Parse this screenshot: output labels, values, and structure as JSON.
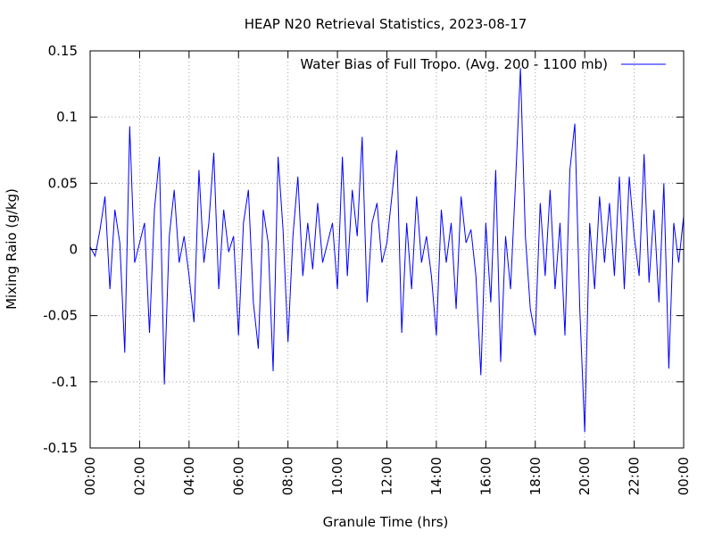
{
  "chart_data": {
    "type": "line",
    "title": "HEAP N20 Retrieval Statistics, 2023-08-17",
    "x_label": "Granule Time (hrs)",
    "y_label": "Mixing Raio (g/kg)",
    "x": [
      0,
      0.2,
      0.4,
      0.6,
      0.8,
      1,
      1.2,
      1.4,
      1.6,
      1.8,
      2,
      2.2,
      2.4,
      2.6,
      2.8,
      3,
      3.2,
      3.4,
      3.6,
      3.8,
      4,
      4.2,
      4.4,
      4.6,
      4.8,
      5,
      5.2,
      5.4,
      5.6,
      5.8,
      6,
      6.2,
      6.4,
      6.6,
      6.8,
      7,
      7.2,
      7.4,
      7.6,
      7.8,
      8,
      8.2,
      8.4,
      8.6,
      8.8,
      9,
      9.2,
      9.4,
      9.6,
      9.8,
      10,
      10.2,
      10.4,
      10.6,
      10.8,
      11,
      11.2,
      11.4,
      11.6,
      11.8,
      12,
      12.2,
      12.4,
      12.6,
      12.8,
      13,
      13.2,
      13.4,
      13.6,
      13.8,
      14,
      14.2,
      14.4,
      14.6,
      14.8,
      15,
      15.2,
      15.4,
      15.6,
      15.8,
      16,
      16.2,
      16.4,
      16.6,
      16.8,
      17,
      17.2,
      17.4,
      17.6,
      17.8,
      18,
      18.2,
      18.4,
      18.6,
      18.8,
      19,
      19.2,
      19.4,
      19.6,
      19.8,
      20,
      20.2,
      20.4,
      20.6,
      20.8,
      21,
      21.2,
      21.4,
      21.6,
      21.8,
      22,
      22.2,
      22.4,
      22.6,
      22.8,
      23,
      23.2,
      23.4,
      23.6,
      23.8,
      24
    ],
    "series": [
      {
        "name": "Water Bias of Full Tropo. (Avg. 200 - 1100 mb)",
        "color": "#0000ff",
        "values": [
          0.002,
          -0.005,
          0.015,
          0.04,
          -0.03,
          0.03,
          0.005,
          -0.078,
          0.093,
          -0.01,
          0.005,
          0.02,
          -0.063,
          0.03,
          0.07,
          -0.102,
          0.01,
          0.045,
          -0.01,
          0.01,
          -0.02,
          -0.055,
          0.06,
          -0.01,
          0.02,
          0.073,
          -0.03,
          0.03,
          -0.002,
          0.01,
          -0.065,
          0.02,
          0.045,
          -0.04,
          -0.075,
          0.03,
          0.005,
          -0.092,
          0.07,
          0.015,
          -0.07,
          0.01,
          0.055,
          -0.02,
          0.02,
          -0.015,
          0.035,
          -0.01,
          0.005,
          0.02,
          -0.03,
          0.07,
          -0.02,
          0.045,
          0.01,
          0.085,
          -0.04,
          0.02,
          0.035,
          -0.01,
          0.005,
          0.04,
          0.075,
          -0.063,
          0.02,
          -0.03,
          0.04,
          -0.01,
          0.01,
          -0.02,
          -0.065,
          0.03,
          -0.01,
          0.02,
          -0.045,
          0.04,
          0.005,
          0.015,
          -0.02,
          -0.095,
          0.02,
          -0.04,
          0.06,
          -0.085,
          0.01,
          -0.03,
          0.05,
          0.137,
          0.01,
          -0.045,
          -0.065,
          0.035,
          -0.02,
          0.045,
          -0.03,
          0.02,
          -0.065,
          0.06,
          0.095,
          -0.045,
          -0.138,
          0.02,
          -0.03,
          0.04,
          -0.01,
          0.035,
          -0.02,
          0.055,
          -0.03,
          0.055,
          0.01,
          -0.02,
          0.072,
          -0.025,
          0.03,
          -0.04,
          0.05,
          -0.09,
          0.02,
          -0.01,
          0.025
        ]
      }
    ],
    "xlim": [
      0,
      24
    ],
    "xticks": [
      {
        "value": 0,
        "label": "00:00"
      },
      {
        "value": 2,
        "label": "02:00"
      },
      {
        "value": 4,
        "label": "04:00"
      },
      {
        "value": 6,
        "label": "06:00"
      },
      {
        "value": 8,
        "label": "08:00"
      },
      {
        "value": 10,
        "label": "10:00"
      },
      {
        "value": 12,
        "label": "12:00"
      },
      {
        "value": 14,
        "label": "14:00"
      },
      {
        "value": 16,
        "label": "16:00"
      },
      {
        "value": 18,
        "label": "18:00"
      },
      {
        "value": 20,
        "label": "20:00"
      },
      {
        "value": 22,
        "label": "22:00"
      },
      {
        "value": 24,
        "label": "00:00"
      }
    ],
    "ylim": [
      -0.15,
      0.15
    ],
    "yticks": [
      -0.15,
      -0.1,
      -0.05,
      0,
      0.05,
      0.1,
      0.15
    ],
    "grid": true,
    "legend": "top-right"
  }
}
